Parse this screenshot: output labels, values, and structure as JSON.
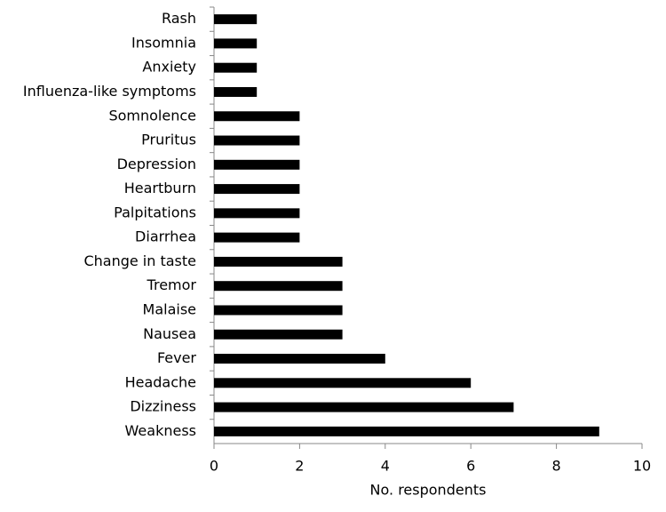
{
  "chart_data": {
    "type": "bar",
    "orientation": "horizontal",
    "xlabel": "No. respondents",
    "categories": [
      "Rash",
      "Insomnia",
      "Anxiety",
      "Influenza-like symptoms",
      "Somnolence",
      "Pruritus",
      "Depression",
      "Heartburn",
      "Palpitations",
      "Diarrhea",
      "Change in taste",
      "Tremor",
      "Malaise",
      "Nausea",
      "Fever",
      "Headache",
      "Dizziness",
      "Weakness"
    ],
    "values": [
      1,
      1,
      1,
      1,
      2,
      2,
      2,
      2,
      2,
      2,
      3,
      3,
      3,
      3,
      4,
      6,
      7,
      9
    ],
    "color": "#000000",
    "xlim": [
      0,
      10
    ],
    "xticks": [
      0,
      2,
      4,
      6,
      8,
      10
    ],
    "grid": false
  }
}
